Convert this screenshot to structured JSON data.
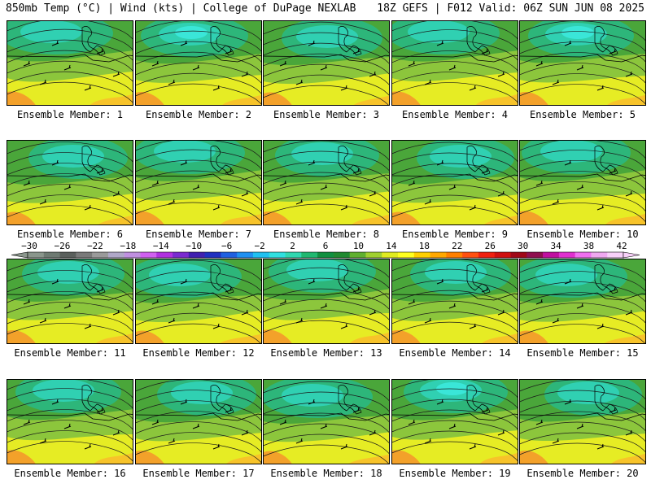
{
  "header": {
    "left": "850mb Temp (°C) | Wind (kts) | College of DuPage NEXLAB",
    "right": "18Z GEFS | F012 Valid: 06Z SUN JUN 08 2025"
  },
  "panels": [
    {
      "label": "Ensemble Member: 1"
    },
    {
      "label": "Ensemble Member: 2"
    },
    {
      "label": "Ensemble Member: 3"
    },
    {
      "label": "Ensemble Member: 4"
    },
    {
      "label": "Ensemble Member: 5"
    },
    {
      "label": "Ensemble Member: 6"
    },
    {
      "label": "Ensemble Member: 7"
    },
    {
      "label": "Ensemble Member: 8"
    },
    {
      "label": "Ensemble Member: 9"
    },
    {
      "label": "Ensemble Member: 10"
    },
    {
      "label": "Ensemble Member: 11"
    },
    {
      "label": "Ensemble Member: 12"
    },
    {
      "label": "Ensemble Member: 13"
    },
    {
      "label": "Ensemble Member: 14"
    },
    {
      "label": "Ensemble Member: 15"
    },
    {
      "label": "Ensemble Member: 16"
    },
    {
      "label": "Ensemble Member: 17"
    },
    {
      "label": "Ensemble Member: 18"
    },
    {
      "label": "Ensemble Member: 19"
    },
    {
      "label": "Ensemble Member: 20"
    }
  ],
  "colorbar": {
    "labels": [
      "−30",
      "−26",
      "−22",
      "−18",
      "−14",
      "−10",
      "−6",
      "−2",
      "2",
      "6",
      "10",
      "14",
      "18",
      "22",
      "26",
      "30",
      "34",
      "38",
      "42"
    ],
    "colors": [
      "#8a968c",
      "#6e7a72",
      "#5a5f5c",
      "#7a7a7a",
      "#9a9a9a",
      "#b0a8c8",
      "#c090e0",
      "#d060f0",
      "#b030e0",
      "#7a2ad0",
      "#4020b0",
      "#2030c0",
      "#2060e0",
      "#2090f0",
      "#20c0f0",
      "#30e0e0",
      "#30d8b0",
      "#20b870",
      "#109040",
      "#208a30",
      "#60b030",
      "#a0d030",
      "#e0ec20",
      "#ffff20",
      "#ffd000",
      "#ffa800",
      "#ff8000",
      "#ff5010",
      "#f02010",
      "#d01010",
      "#a00818",
      "#901050",
      "#c010a0",
      "#e030d0",
      "#f070f0",
      "#f0a8f0",
      "#f8d0f8"
    ]
  }
}
